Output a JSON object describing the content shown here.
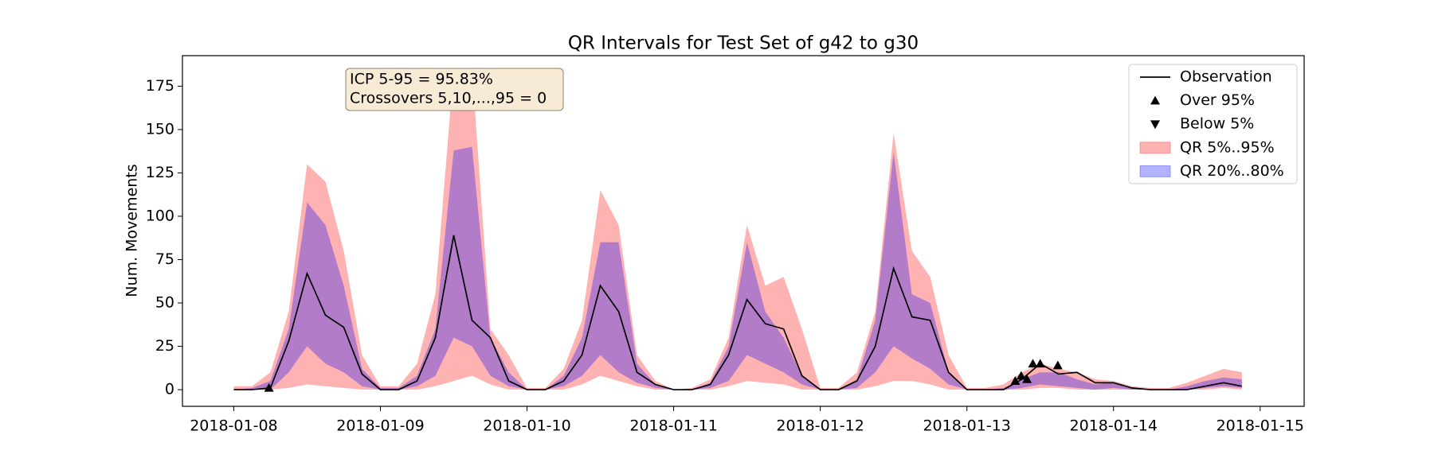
{
  "chart_data": {
    "type": "quantile-band",
    "title": "QR Intervals for Test Set of g42 to g30",
    "ylabel": "Num. Movements",
    "annotation": [
      "ICP 5-95 = 95.83%",
      "Crossovers 5,10,...,95 = 0"
    ],
    "legend": "upper right",
    "grid": false,
    "xlim": [
      -0.35,
      7.3
    ],
    "ylim": [
      -9.6,
      192.6
    ],
    "xticks": [
      {
        "value": 0,
        "label": "2018-01-08"
      },
      {
        "value": 1,
        "label": "2018-01-09"
      },
      {
        "value": 2,
        "label": "2018-01-10"
      },
      {
        "value": 3,
        "label": "2018-01-11"
      },
      {
        "value": 4,
        "label": "2018-01-12"
      },
      {
        "value": 5,
        "label": "2018-01-13"
      },
      {
        "value": 6,
        "label": "2018-01-14"
      },
      {
        "value": 7,
        "label": "2018-01-15"
      }
    ],
    "yticks": [
      0,
      25,
      50,
      75,
      100,
      125,
      150,
      175
    ],
    "x": [
      0,
      0.125,
      0.25,
      0.375,
      0.5,
      0.625,
      0.75,
      0.875,
      1,
      1.125,
      1.25,
      1.375,
      1.5,
      1.625,
      1.75,
      1.875,
      2,
      2.125,
      2.25,
      2.375,
      2.5,
      2.625,
      2.75,
      2.875,
      3,
      3.125,
      3.25,
      3.375,
      3.5,
      3.625,
      3.75,
      3.875,
      4,
      4.125,
      4.25,
      4.375,
      4.5,
      4.625,
      4.75,
      4.875,
      5,
      5.125,
      5.25,
      5.375,
      5.5,
      5.625,
      5.75,
      5.875,
      6,
      6.125,
      6.25,
      6.375,
      6.5,
      6.625,
      6.75,
      6.875
    ],
    "series": [
      {
        "name": "Observation",
        "kind": "line",
        "color": "#000000",
        "values": [
          0,
          0,
          1,
          28,
          67,
          43,
          36,
          9,
          0,
          0,
          5,
          30,
          89,
          40,
          30,
          5,
          0,
          0,
          5,
          20,
          60,
          45,
          10,
          3,
          0,
          0,
          3,
          20,
          52,
          38,
          35,
          8,
          0,
          0,
          5,
          25,
          70,
          42,
          40,
          10,
          0,
          0,
          0,
          6,
          15,
          9,
          10,
          4,
          4,
          1,
          0,
          0,
          0,
          2,
          4,
          2
        ]
      },
      {
        "name": "Over 95%",
        "kind": "marker-up",
        "color": "#000000",
        "x": [
          0.24,
          5.33,
          5.37,
          5.41,
          5.45,
          5.5,
          5.62
        ],
        "values": [
          1,
          5,
          8,
          6,
          15,
          15,
          14
        ]
      },
      {
        "name": "Below 5%",
        "kind": "marker-down",
        "color": "#000000",
        "x": [],
        "values": []
      },
      {
        "name": "QR 5%..95%",
        "kind": "band",
        "color": "#ff0000",
        "alpha": 0.3,
        "lower": [
          0,
          0,
          0,
          1,
          3,
          2,
          1,
          0,
          0,
          0,
          0,
          2,
          5,
          8,
          3,
          0,
          0,
          0,
          0,
          3,
          8,
          5,
          2,
          0,
          0,
          0,
          0,
          2,
          5,
          4,
          3,
          0,
          0,
          0,
          0,
          2,
          5,
          5,
          3,
          0,
          0,
          0,
          0,
          0,
          1,
          1,
          0,
          0,
          0,
          0,
          0,
          0,
          0,
          0,
          1,
          0
        ],
        "upper": [
          2,
          2,
          10,
          45,
          130,
          120,
          80,
          20,
          2,
          2,
          15,
          55,
          185,
          185,
          35,
          20,
          1,
          1,
          12,
          40,
          115,
          95,
          20,
          5,
          0,
          1,
          6,
          30,
          95,
          60,
          65,
          35,
          1,
          1,
          10,
          45,
          148,
          80,
          65,
          20,
          1,
          1,
          3,
          10,
          15,
          12,
          10,
          6,
          5,
          2,
          1,
          1,
          4,
          8,
          12,
          10
        ]
      },
      {
        "name": "QR 20%..80%",
        "kind": "band",
        "color": "#0000ff",
        "alpha": 0.3,
        "lower": [
          0,
          0,
          0,
          10,
          25,
          15,
          10,
          2,
          0,
          0,
          2,
          8,
          30,
          25,
          8,
          2,
          0,
          0,
          2,
          8,
          20,
          10,
          4,
          1,
          0,
          0,
          1,
          5,
          20,
          15,
          10,
          3,
          0,
          0,
          1,
          10,
          25,
          18,
          12,
          3,
          0,
          0,
          0,
          1,
          3,
          2,
          1,
          0,
          1,
          0,
          0,
          0,
          0,
          1,
          2,
          1
        ],
        "upper": [
          0,
          1,
          5,
          35,
          108,
          95,
          60,
          12,
          1,
          1,
          8,
          35,
          138,
          140,
          30,
          10,
          0,
          0,
          8,
          30,
          85,
          85,
          15,
          3,
          0,
          0,
          4,
          25,
          85,
          45,
          30,
          8,
          0,
          0,
          6,
          40,
          137,
          55,
          50,
          10,
          0,
          0,
          1,
          6,
          10,
          10,
          6,
          3,
          4,
          1,
          0,
          0,
          2,
          5,
          7,
          6
        ]
      }
    ]
  }
}
